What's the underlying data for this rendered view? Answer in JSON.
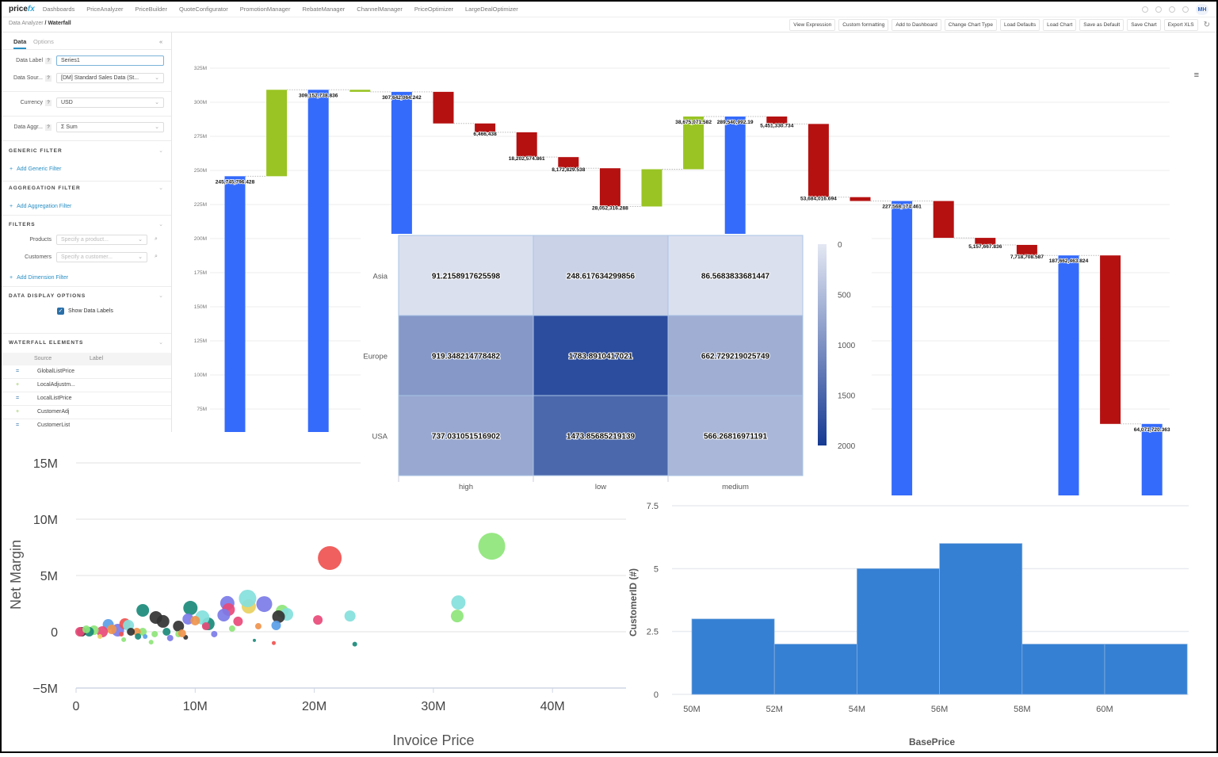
{
  "app": {
    "logo": "pricefx",
    "nav": [
      "Dashboards",
      "PriceAnalyzer",
      "PriceBuilder",
      "QuoteConfigurator",
      "PromotionManager",
      "RebateManager",
      "ChannelManager",
      "PriceOptimizer",
      "LargeDealOptimizer"
    ],
    "user_initials": "MH"
  },
  "breadcrumb": {
    "parent": "Data Analyzer",
    "separator": " / ",
    "current": "Waterfall"
  },
  "toolbar": [
    "View Expression",
    "Custom formatting",
    "Add to Dashboard",
    "Change Chart Type",
    "Load Defaults",
    "Load Chart",
    "Save as Default",
    "Save Chart",
    "Export XLS"
  ],
  "sidebar": {
    "tabs": [
      "Data",
      "Options"
    ],
    "active_tab": "Data",
    "collapse": "«",
    "data_label": {
      "label": "Data Label",
      "value": "Series1"
    },
    "data_source": {
      "label": "Data Sour...",
      "value": "[DM] Standard Sales Data (St..."
    },
    "currency": {
      "label": "Currency",
      "value": "USD"
    },
    "data_aggr": {
      "label": "Data Aggr...",
      "value": "Σ Sum"
    },
    "help": "?",
    "generic_filter": {
      "title": "GENERIC FILTER",
      "add": "Add Generic Filter"
    },
    "aggregation_filter": {
      "title": "AGGREGATION FILTER",
      "add": "Add Aggregation Filter"
    },
    "filters": {
      "title": "FILTERS",
      "products_label": "Products",
      "products_placeholder": "Specify a product...",
      "customers_label": "Customers",
      "customers_placeholder": "Specify a customer...",
      "add": "Add Dimension Filter"
    },
    "display": {
      "title": "DATA DISPLAY OPTIONS",
      "show_labels": "Show Data Labels",
      "show_labels_checked": true
    },
    "waterfall": {
      "title": "WATERFALL ELEMENTS",
      "col_source": "Source",
      "col_label": "Label",
      "rows": [
        {
          "icon": "=",
          "source": "GlobalListPrice"
        },
        {
          "icon": "+",
          "source": "LocalAdjustm..."
        },
        {
          "icon": "=",
          "source": "LocalListPrice"
        },
        {
          "icon": "+",
          "source": "CustomerAdj"
        },
        {
          "icon": "=",
          "source": "CustomerList"
        }
      ]
    }
  },
  "chart_data": [
    {
      "type": "waterfall",
      "y_ticks": [
        "325M",
        "300M",
        "275M",
        "250M",
        "225M",
        "200M",
        "175M",
        "150M",
        "125M",
        "100M",
        "75M"
      ],
      "ylim_visible": [
        75000000,
        325000000
      ],
      "grid": true,
      "colors": {
        "total": "#356bfb",
        "increase": "#99c424",
        "decrease": "#b51111"
      },
      "steps": [
        {
          "kind": "total",
          "value": 245745796.428,
          "label": "245,745,796.428"
        },
        {
          "kind": "increase",
          "value": 63406942.408,
          "label": ""
        },
        {
          "kind": "total",
          "value": 309152738.836,
          "label": "309,152,738.836"
        },
        {
          "kind": "increase",
          "value": -1510674.594,
          "label": ""
        },
        {
          "kind": "total",
          "value": 307642064.242,
          "label": "307,642,064.242"
        },
        {
          "kind": "decrease",
          "value": 23190000,
          "label": ""
        },
        {
          "kind": "decrease",
          "value": 6466438,
          "label": "6,466,438"
        },
        {
          "kind": "decrease",
          "value": 18202574.861,
          "label": "18,202,574.861"
        },
        {
          "kind": "decrease",
          "value": 8172829.538,
          "label": "8,172,829.538"
        },
        {
          "kind": "decrease",
          "value": 28052316.288,
          "label": "28,052,316.288"
        },
        {
          "kind": "increase",
          "value": 27308015.053,
          "label": ""
        },
        {
          "kind": "increase",
          "value": 38675071.582,
          "label": "38,675,071.582"
        },
        {
          "kind": "total",
          "value": 289540992.19,
          "label": "289,540,992.19"
        },
        {
          "kind": "decrease",
          "value": 5451330.734,
          "label": "5,451,330.734"
        },
        {
          "kind": "decrease",
          "value": 53684016.694,
          "label": "53,684,016.694"
        },
        {
          "kind": "decrease",
          "value": 2837470.301,
          "label": ""
        },
        {
          "kind": "total",
          "value": 227568174.461,
          "label": "227,568,174.461"
        },
        {
          "kind": "decrease",
          "value": 27029334.214,
          "label": ""
        },
        {
          "kind": "decrease",
          "value": 5157667.836,
          "label": "5,157,667.836"
        },
        {
          "kind": "decrease",
          "value": 7718708.587,
          "label": "7,718,708.587"
        },
        {
          "kind": "total",
          "value": 187662463.824,
          "label": "187,662,463.824"
        },
        {
          "kind": "decrease",
          "value": 123590743.461,
          "label": ""
        },
        {
          "kind": "total",
          "value": 64071720.363,
          "label": "64,071,720.363"
        }
      ]
    },
    {
      "type": "heatmap",
      "rows": [
        "Asia",
        "Europe",
        "USA"
      ],
      "columns": [
        "high",
        "low",
        "medium"
      ],
      "values": [
        [
          "91.2158917625598",
          "248.617634299856",
          "86.5683833681447"
        ],
        [
          "919.348214778482",
          "1783.8910417021",
          "662.729219025749"
        ],
        [
          "737.031051516902",
          "1473.85685219139",
          "566.26816971191"
        ]
      ],
      "colorbar_ticks": [
        "0",
        "500",
        "1000",
        "1500",
        "2000"
      ],
      "color_range": [
        0,
        2000
      ],
      "color_low": "#e4e8f3",
      "color_high": "#163a93"
    },
    {
      "type": "scatter",
      "xlabel": "Invoice Price",
      "ylabel": "Net Margin",
      "x_ticks": [
        "0",
        "10M",
        "20M",
        "30M",
        "40M"
      ],
      "y_ticks": [
        "15M",
        "10M",
        "5M",
        "0",
        "−5M"
      ],
      "xlim": [
        0,
        46000000
      ],
      "ylim": [
        -5000000,
        15000000
      ],
      "palette": {
        "red": "#ef5350",
        "green": "#8ee57a",
        "cyan": "#84e0dc",
        "teal": "#1a8a7a",
        "pink": "#e84a78",
        "black": "#333333",
        "blue": "#5b9ee8",
        "purple": "#7b7be8",
        "yellow": "#e8d060",
        "orange": "#f0944d"
      },
      "points_xy_million_size_color": [
        [
          21.3,
          6.55,
          15,
          "red"
        ],
        [
          34.9,
          7.6,
          17,
          "green"
        ],
        [
          32.1,
          2.6,
          9,
          "cyan"
        ],
        [
          32.0,
          1.4,
          8,
          "green"
        ],
        [
          23.0,
          1.4,
          7,
          "cyan"
        ],
        [
          23.4,
          -1.1,
          3,
          "teal"
        ],
        [
          20.3,
          1.05,
          6,
          "pink"
        ],
        [
          16.6,
          -1.0,
          2.5,
          "red"
        ],
        [
          17.3,
          1.83,
          8,
          "green"
        ],
        [
          17.7,
          1.55,
          8,
          "cyan"
        ],
        [
          17.0,
          1.34,
          8,
          "black"
        ],
        [
          16.8,
          0.56,
          6,
          "blue"
        ],
        [
          15.8,
          2.46,
          10,
          "purple"
        ],
        [
          14.5,
          2.25,
          9,
          "yellow"
        ],
        [
          14.4,
          2.96,
          11,
          "cyan"
        ],
        [
          12.7,
          2.54,
          9,
          "purple"
        ],
        [
          12.8,
          1.97,
          8,
          "pink"
        ],
        [
          12.4,
          1.48,
          8,
          "purple"
        ],
        [
          13.6,
          0.92,
          6,
          "pink"
        ],
        [
          15.3,
          0.49,
          4,
          "orange"
        ],
        [
          14.97,
          -0.77,
          2,
          "teal"
        ],
        [
          11.1,
          0.7,
          8,
          "teal"
        ],
        [
          10.6,
          1.27,
          9,
          "cyan"
        ],
        [
          9.6,
          2.11,
          9,
          "teal"
        ],
        [
          9.4,
          1.13,
          7,
          "purple"
        ],
        [
          10.0,
          0.99,
          6,
          "orange"
        ],
        [
          10.9,
          0.49,
          5,
          "pink"
        ],
        [
          11.6,
          -0.21,
          4,
          "purple"
        ],
        [
          13.1,
          0.28,
          4,
          "green"
        ],
        [
          9.2,
          -0.49,
          3,
          "black"
        ],
        [
          8.6,
          0.49,
          7,
          "black"
        ],
        [
          6.7,
          1.27,
          8,
          "black"
        ],
        [
          7.3,
          0.92,
          8,
          "black"
        ],
        [
          5.6,
          1.9,
          8,
          "teal"
        ],
        [
          7.6,
          0,
          5,
          "teal"
        ],
        [
          6.6,
          -0.21,
          4,
          "green"
        ],
        [
          6.3,
          -0.92,
          3,
          "green"
        ],
        [
          7.9,
          -0.56,
          4,
          "purple"
        ],
        [
          8.6,
          -0.21,
          4,
          "green"
        ],
        [
          5.6,
          0,
          5,
          "green"
        ],
        [
          5.1,
          0,
          5,
          "orange"
        ],
        [
          3.5,
          0.14,
          8,
          "purple"
        ],
        [
          4.1,
          0.7,
          7,
          "red"
        ],
        [
          4.4,
          0.56,
          7,
          "cyan"
        ],
        [
          4.6,
          0,
          5,
          "black"
        ],
        [
          5.2,
          -0.42,
          4,
          "teal"
        ],
        [
          2.7,
          0.63,
          7,
          "blue"
        ],
        [
          3.0,
          0.21,
          6,
          "orange"
        ],
        [
          2.2,
          0,
          7,
          "pink"
        ],
        [
          1.5,
          0.14,
          6,
          "green"
        ],
        [
          1.1,
          0,
          6,
          "teal"
        ],
        [
          0.47,
          0,
          6,
          "black"
        ],
        [
          0.33,
          0,
          6,
          "pink"
        ],
        [
          0.86,
          0.21,
          5,
          "green"
        ],
        [
          2.0,
          -0.42,
          3,
          "yellow"
        ],
        [
          3.8,
          -0.21,
          3,
          "red"
        ],
        [
          4.0,
          -0.7,
          3,
          "green"
        ],
        [
          5.8,
          -0.42,
          3,
          "blue"
        ],
        [
          8.9,
          -0.14,
          5,
          "orange"
        ]
      ]
    },
    {
      "type": "bar",
      "subtype": "histogram",
      "xlabel": "BasePrice",
      "ylabel": "CustomerID (#)",
      "bin_edges_million": [
        50,
        52,
        54,
        56,
        58,
        60,
        62
      ],
      "values": [
        3,
        2,
        5,
        6,
        2,
        2
      ],
      "x_ticks": [
        "50M",
        "52M",
        "54M",
        "56M",
        "58M",
        "60M"
      ],
      "y_ticks": [
        "7.5",
        "5",
        "2.5",
        "0"
      ],
      "ylim": [
        0,
        7.5
      ],
      "color": "#3580d3",
      "grid": true
    }
  ]
}
